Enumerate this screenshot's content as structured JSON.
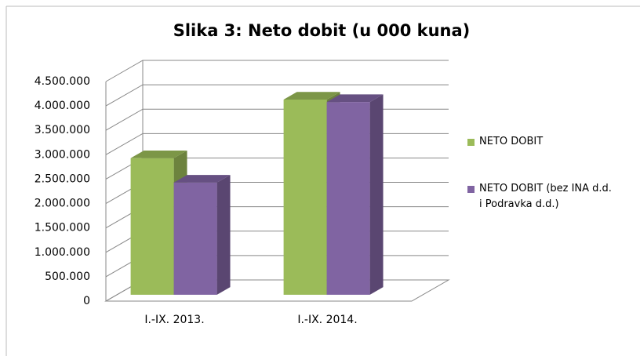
{
  "chart_data": {
    "type": "bar3d",
    "title": "Slika 3: Neto dobit (u 000 kuna)",
    "categories": [
      "I.-IX. 2013.",
      "I.-IX. 2014."
    ],
    "series": [
      {
        "name": "NETO DOBIT",
        "color": "#9bbb59",
        "values": [
          2800000,
          4000000
        ]
      },
      {
        "name": "NETO DOBIT (bez INA d.d. i Podravka d.d.)",
        "color": "#8064a2",
        "values": [
          2300000,
          3950000
        ]
      }
    ],
    "ylim": [
      0,
      4500000
    ],
    "yticks": [
      0,
      {
        "value": 500000,
        "label": "500.000"
      },
      {
        "value": 1000000,
        "label": "1.000.000"
      },
      {
        "value": 1500000,
        "label": "1.500.000"
      },
      {
        "value": 2000000,
        "label": "2.000.000"
      },
      {
        "value": 2500000,
        "label": "2.500.000"
      },
      {
        "value": 3000000,
        "label": "3.000.000"
      },
      {
        "value": 3500000,
        "label": "3.500.000"
      },
      {
        "value": 4000000,
        "label": "4.000.000"
      },
      {
        "value": 4500000,
        "label": "4.500.000"
      }
    ],
    "grid": true,
    "legend": "right"
  }
}
